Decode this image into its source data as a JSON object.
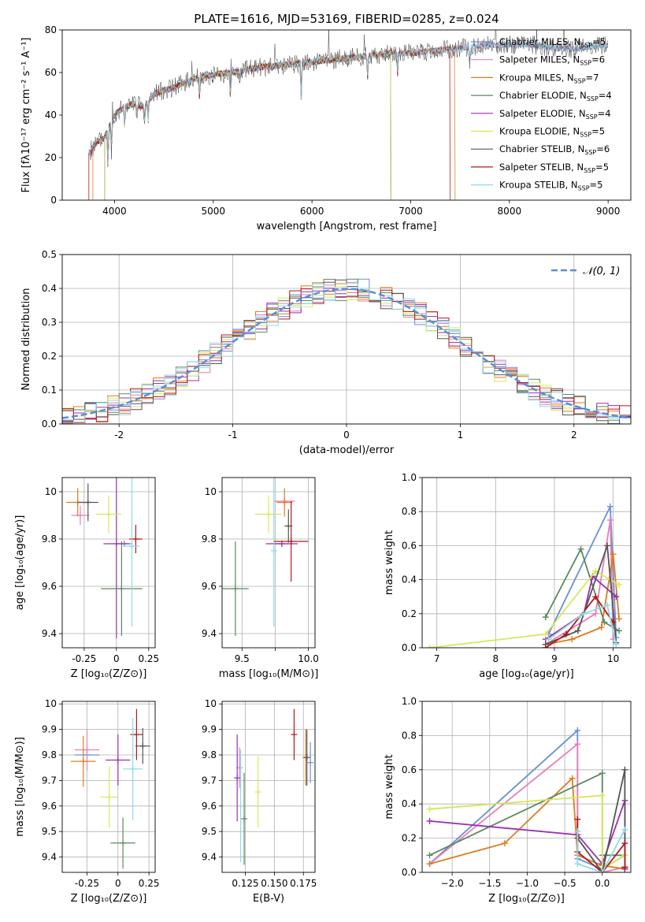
{
  "figure_title": "PLATE=1616, MJD=53169, FIBERID=0285, z=0.024",
  "colors": {
    "chabrier_miles": "#6a8fd8",
    "salpeter_miles": "#e67fb9",
    "kroupa_miles": "#e07b1f",
    "chabrier_elodie": "#5a8a5e",
    "salpeter_elodie": "#9b2fb0",
    "kroupa_elodie": "#d4e85a",
    "chabrier_stelib": "#555555",
    "salpeter_stelib": "#b01a1a",
    "kroupa_stelib": "#8fd9e6"
  },
  "chart_data": [
    {
      "id": "spectrum",
      "type": "line",
      "xlabel": "wavelength [Angstrom, rest frame]",
      "ylabel": "Flux [fλ10⁻¹⁷ erg cm⁻² s⁻¹ A⁻¹]",
      "xlim": [
        3470,
        9230
      ],
      "ylim": [
        0,
        80
      ],
      "xticks": [
        4000,
        5000,
        6000,
        7000,
        8000,
        9000
      ],
      "yticks": [
        0,
        20,
        40,
        60,
        80
      ],
      "legend_position": "top-right",
      "series": [
        {
          "name": "Chabrier MILES, N_SSP=5",
          "color_key": "chabrier_miles"
        },
        {
          "name": "Salpeter MILES, N_SSP=6",
          "color_key": "salpeter_miles"
        },
        {
          "name": "Kroupa MILES, N_SSP=7",
          "color_key": "kroupa_miles"
        },
        {
          "name": "Chabrier ELODIE, N_SSP=4",
          "color_key": "chabrier_elodie"
        },
        {
          "name": "Salpeter ELODIE, N_SSP=4",
          "color_key": "salpeter_elodie"
        },
        {
          "name": "Kroupa ELODIE, N_SSP=5",
          "color_key": "kroupa_elodie"
        },
        {
          "name": "Chabrier STELIB, N_SSP=6",
          "color_key": "chabrier_stelib"
        },
        {
          "name": "Salpeter STELIB, N_SSP=5",
          "color_key": "salpeter_stelib"
        },
        {
          "name": "Kroupa STELIB, N_SSP=5",
          "color_key": "kroupa_stelib"
        }
      ],
      "continuum": {
        "x": [
          3740,
          3800,
          3900,
          4000,
          4100,
          4200,
          4300,
          4400,
          4600,
          4800,
          5000,
          5200,
          5400,
          5600,
          5800,
          6000,
          6200,
          6400,
          6600,
          6800,
          7000,
          7200,
          7400,
          7600,
          7800,
          8000,
          8200,
          8400,
          8600,
          8800,
          9000
        ],
        "y": [
          22,
          26,
          30,
          40,
          44,
          45,
          44,
          50,
          53,
          57,
          59,
          60,
          62,
          63,
          64,
          65,
          66,
          67,
          68,
          69,
          69,
          70,
          71,
          72,
          73,
          73,
          73,
          72,
          71,
          72,
          73
        ]
      },
      "model_cutoffs": {
        "kroupa_miles": [
          3780,
          7450
        ],
        "chabrier_elodie": [
          3900,
          6800
        ],
        "salpeter_elodie": [
          3900,
          6800
        ],
        "kroupa_elodie": [
          3900,
          6800
        ],
        "salpeter_stelib": [
          3740,
          7400
        ]
      }
    },
    {
      "id": "residuals",
      "type": "line",
      "xlabel": "(data-model)/error",
      "ylabel": "Normed distribution",
      "xlim": [
        -2.5,
        2.5
      ],
      "ylim": [
        0,
        0.5
      ],
      "xticks": [
        -2,
        -1,
        0,
        1,
        2
      ],
      "yticks": [
        0.0,
        0.1,
        0.2,
        0.3,
        0.4,
        0.5
      ],
      "legend_position": "top-right",
      "gaussian_label": "𝒩(0, 1)",
      "note": "step histograms of normalized residuals, one per model, bin width 0.1"
    },
    {
      "id": "age_vs_Z",
      "type": "scatter",
      "xlabel": "Z [log₁₀(Z/Z⊙)]",
      "ylabel": "age  [log₁₀(age/yr)]",
      "xlim": [
        -0.42,
        0.3
      ],
      "ylim": [
        9.34,
        10.06
      ],
      "xticks": [
        -0.25,
        0.0,
        0.25
      ],
      "yticks": [
        9.4,
        9.6,
        9.8,
        10.0
      ],
      "points": [
        {
          "m": "chabrier_miles",
          "x": 0.06,
          "xerr": 0.06,
          "y": 9.78,
          "yerr": 0.0
        },
        {
          "m": "salpeter_miles",
          "x": -0.28,
          "xerr": 0.07,
          "y": 9.9,
          "yerr": 0.04
        },
        {
          "m": "kroupa_miles",
          "x": -0.3,
          "xerr": 0.09,
          "y": 9.955,
          "yerr": 0.06
        },
        {
          "m": "chabrier_elodie",
          "x": 0.04,
          "xerr": 0.16,
          "y": 9.59,
          "yerr": 0.2
        },
        {
          "m": "salpeter_elodie",
          "x": 0.0,
          "xerr": 0.1,
          "y": 9.78,
          "yerr": 0.4
        },
        {
          "m": "kroupa_elodie",
          "x": -0.06,
          "xerr": 0.1,
          "y": 9.905,
          "yerr": 0.08
        },
        {
          "m": "chabrier_stelib",
          "x": -0.22,
          "xerr": 0.08,
          "y": 9.955,
          "yerr": 0.08
        },
        {
          "m": "salpeter_stelib",
          "x": 0.15,
          "xerr": 0.05,
          "y": 9.8,
          "yerr": 0.06
        },
        {
          "m": "kroupa_stelib",
          "x": 0.12,
          "xerr": 0.06,
          "y": 9.77,
          "yerr": 0.34
        }
      ]
    },
    {
      "id": "age_vs_mass",
      "type": "scatter",
      "xlabel": "mass [log₁₀(M/M⊙)]",
      "xlim": [
        9.35,
        10.05
      ],
      "ylim": [
        9.34,
        10.06
      ],
      "xticks": [
        9.5,
        9.75,
        10.0
      ],
      "xtick_labels": [
        "9.5",
        "",
        "10.0"
      ],
      "yticks": [
        9.4,
        9.6,
        9.8,
        10.0
      ],
      "points": [
        {
          "m": "chabrier_miles",
          "x": 9.8,
          "xerr": 0.08,
          "y": 9.78,
          "yerr": 0.0
        },
        {
          "m": "salpeter_miles",
          "x": 9.82,
          "xerr": 0.08,
          "y": 9.96,
          "yerr": 0.0
        },
        {
          "m": "kroupa_miles",
          "x": 9.82,
          "xerr": 0.06,
          "y": 9.955,
          "yerr": 0.06
        },
        {
          "m": "chabrier_elodie",
          "x": 9.45,
          "xerr": 0.1,
          "y": 9.59,
          "yerr": 0.2
        },
        {
          "m": "salpeter_elodie",
          "x": 9.8,
          "xerr": 0.12,
          "y": 9.78,
          "yerr": 0.0
        },
        {
          "m": "kroupa_elodie",
          "x": 9.7,
          "xerr": 0.1,
          "y": 9.905,
          "yerr": 0.08
        },
        {
          "m": "chabrier_stelib",
          "x": 9.85,
          "xerr": 0.03,
          "y": 9.855,
          "yerr": 0.07
        },
        {
          "m": "salpeter_stelib",
          "x": 9.87,
          "xerr": 0.13,
          "y": 9.79,
          "yerr": 0.17
        },
        {
          "m": "kroupa_stelib",
          "x": 9.74,
          "xerr": 0.0,
          "y": 9.75,
          "yerr": 0.32
        }
      ]
    },
    {
      "id": "weight_vs_age",
      "type": "line",
      "xlabel": "age  [log₁₀(age/yr)]",
      "ylabel": "mass weight",
      "xlim": [
        6.75,
        10.3
      ],
      "ylim": [
        0,
        1.0
      ],
      "xticks": [
        7,
        8,
        9,
        10
      ],
      "yticks": [
        0.0,
        0.2,
        0.4,
        0.6,
        0.8,
        1.0
      ],
      "series": [
        {
          "m": "chabrier_miles",
          "x": [
            8.9,
            9.95,
            10.05
          ],
          "y": [
            0.08,
            0.83,
            0.06
          ]
        },
        {
          "m": "salpeter_miles",
          "x": [
            8.9,
            9.7,
            9.95,
            10.0
          ],
          "y": [
            0.03,
            0.2,
            0.75,
            0.05
          ]
        },
        {
          "m": "kroupa_miles",
          "x": [
            8.85,
            9.3,
            9.8,
            10.0,
            10.1
          ],
          "y": [
            0.02,
            0.05,
            0.12,
            0.55,
            0.17
          ]
        },
        {
          "m": "chabrier_elodie",
          "x": [
            8.85,
            9.45,
            9.85,
            10.1
          ],
          "y": [
            0.18,
            0.58,
            0.15,
            0.1
          ]
        },
        {
          "m": "salpeter_elodie",
          "x": [
            8.85,
            9.5,
            9.65,
            10.05
          ],
          "y": [
            0.05,
            0.2,
            0.42,
            0.3
          ]
        },
        {
          "m": "kroupa_elodie",
          "x": [
            6.88,
            8.85,
            9.7,
            10.1
          ],
          "y": [
            0.0,
            0.08,
            0.45,
            0.37
          ]
        },
        {
          "m": "chabrier_stelib",
          "x": [
            8.85,
            9.4,
            9.9,
            10.05
          ],
          "y": [
            0.02,
            0.1,
            0.6,
            0.03
          ]
        },
        {
          "m": "salpeter_stelib",
          "x": [
            8.85,
            9.2,
            9.7,
            10.0
          ],
          "y": [
            0.0,
            0.08,
            0.3,
            0.15
          ]
        },
        {
          "m": "kroupa_stelib",
          "x": [
            8.9,
            9.5,
            9.9,
            10.05
          ],
          "y": [
            0.05,
            0.2,
            0.25,
            0.02
          ]
        }
      ]
    },
    {
      "id": "mass_vs_Z",
      "type": "scatter",
      "xlabel": "Z [log₁₀(Z/Z⊙)]",
      "ylabel": "mass [log₁₀(M/M⊙)]",
      "xlim": [
        -0.45,
        0.3
      ],
      "ylim": [
        9.34,
        10.01
      ],
      "xticks": [
        -0.25,
        0.0,
        0.25
      ],
      "yticks": [
        9.4,
        9.5,
        9.6,
        9.7,
        9.8,
        9.9,
        10.0
      ],
      "points": [
        {
          "m": "chabrier_miles",
          "x": -0.25,
          "xerr": 0.1,
          "y": 9.8,
          "yerr": 0.0
        },
        {
          "m": "salpeter_miles",
          "x": -0.25,
          "xerr": 0.1,
          "y": 9.82,
          "yerr": 0.08
        },
        {
          "m": "kroupa_miles",
          "x": -0.28,
          "xerr": 0.1,
          "y": 9.775,
          "yerr": 0.1
        },
        {
          "m": "chabrier_elodie",
          "x": 0.04,
          "xerr": 0.1,
          "y": 9.455,
          "yerr": 0.1
        },
        {
          "m": "salpeter_elodie",
          "x": 0.0,
          "xerr": 0.1,
          "y": 9.78,
          "yerr": 0.1
        },
        {
          "m": "kroupa_elodie",
          "x": -0.07,
          "xerr": 0.07,
          "y": 9.635,
          "yerr": 0.12
        },
        {
          "m": "chabrier_stelib",
          "x": 0.2,
          "xerr": 0.06,
          "y": 9.835,
          "yerr": 0.07
        },
        {
          "m": "salpeter_stelib",
          "x": 0.15,
          "xerr": 0.05,
          "y": 9.88,
          "yerr": 0.1
        },
        {
          "m": "kroupa_stelib",
          "x": 0.12,
          "xerr": 0.08,
          "y": 9.745,
          "yerr": 0.2
        }
      ]
    },
    {
      "id": "mass_vs_ebv",
      "type": "scatter",
      "xlabel": "E(B-V)",
      "xlim": [
        0.105,
        0.185
      ],
      "ylim": [
        9.34,
        10.01
      ],
      "xticks": [
        0.125,
        0.15,
        0.175
      ],
      "xtick_labels": [
        "0.125",
        "0.150",
        "0.175"
      ],
      "yticks": [
        9.4,
        9.5,
        9.6,
        9.7,
        9.8,
        9.9,
        10.0
      ],
      "points": [
        {
          "m": "chabrier_miles",
          "x": 0.181,
          "y": 9.77,
          "yerr": 0.08
        },
        {
          "m": "salpeter_miles",
          "x": 0.12,
          "y": 9.75,
          "yerr": 0.08
        },
        {
          "m": "kroupa_miles",
          "x": 0.177,
          "y": 9.79,
          "yerr": 0.11
        },
        {
          "m": "chabrier_elodie",
          "x": 0.124,
          "y": 9.55,
          "yerr": 0.18
        },
        {
          "m": "salpeter_elodie",
          "x": 0.118,
          "y": 9.71,
          "yerr": 0.17
        },
        {
          "m": "kroupa_elodie",
          "x": 0.136,
          "y": 9.655,
          "yerr": 0.14
        },
        {
          "m": "chabrier_stelib",
          "x": 0.178,
          "y": 9.79,
          "yerr": 0.11
        },
        {
          "m": "salpeter_stelib",
          "x": 0.167,
          "y": 9.88,
          "yerr": 0.1
        },
        {
          "m": "kroupa_stelib",
          "x": 0.121,
          "y": 9.6,
          "yerr": 0.22
        }
      ]
    },
    {
      "id": "weight_vs_Z",
      "type": "line",
      "xlabel": "Z [log₁₀(Z/Z⊙)]",
      "ylabel": "mass weight",
      "xlim": [
        -2.4,
        0.38
      ],
      "ylim": [
        0,
        1.0
      ],
      "xticks": [
        -2.0,
        -1.5,
        -1.0,
        -0.5,
        0.0
      ],
      "xtick_labels": [
        "−2.0",
        "−1.5",
        "−1.0",
        "−0.5",
        "0.0"
      ],
      "yticks": [
        0.0,
        0.2,
        0.4,
        0.6,
        0.8,
        1.0
      ],
      "series": [
        {
          "m": "chabrier_miles",
          "x": [
            -2.3,
            -0.33,
            -0.33,
            0.0,
            0.3
          ],
          "y": [
            0.05,
            0.83,
            0.08,
            0.02,
            0.1
          ]
        },
        {
          "m": "salpeter_miles",
          "x": [
            -2.3,
            -0.33,
            -0.33,
            0.0,
            0.3
          ],
          "y": [
            0.05,
            0.75,
            0.2,
            0.0,
            0.03
          ]
        },
        {
          "m": "kroupa_miles",
          "x": [
            -2.3,
            -1.3,
            -0.4,
            -0.33,
            0.0,
            0.3
          ],
          "y": [
            0.05,
            0.17,
            0.55,
            0.1,
            0.04,
            0.02
          ]
        },
        {
          "m": "chabrier_elodie",
          "x": [
            -2.3,
            0.0,
            0.0,
            0.3
          ],
          "y": [
            0.1,
            0.58,
            0.1,
            0.1
          ]
        },
        {
          "m": "salpeter_elodie",
          "x": [
            -2.3,
            -0.33,
            0.0,
            0.3,
            0.3
          ],
          "y": [
            0.3,
            0.22,
            0.05,
            0.42,
            0.02
          ]
        },
        {
          "m": "kroupa_elodie",
          "x": [
            -2.3,
            0.0,
            0.0,
            0.3
          ],
          "y": [
            0.37,
            0.45,
            0.02,
            0.1
          ]
        },
        {
          "m": "chabrier_stelib",
          "x": [
            -0.33,
            0.0,
            0.3,
            0.3
          ],
          "y": [
            0.2,
            0.0,
            0.6,
            0.03
          ]
        },
        {
          "m": "salpeter_stelib",
          "x": [
            -0.33,
            -0.33,
            0.0,
            0.3,
            0.3
          ],
          "y": [
            0.31,
            0.12,
            0.0,
            0.17,
            0.03
          ]
        },
        {
          "m": "kroupa_stelib",
          "x": [
            -0.33,
            -0.33,
            0.0,
            0.3
          ],
          "y": [
            0.24,
            0.05,
            0.0,
            0.25
          ]
        }
      ]
    }
  ]
}
